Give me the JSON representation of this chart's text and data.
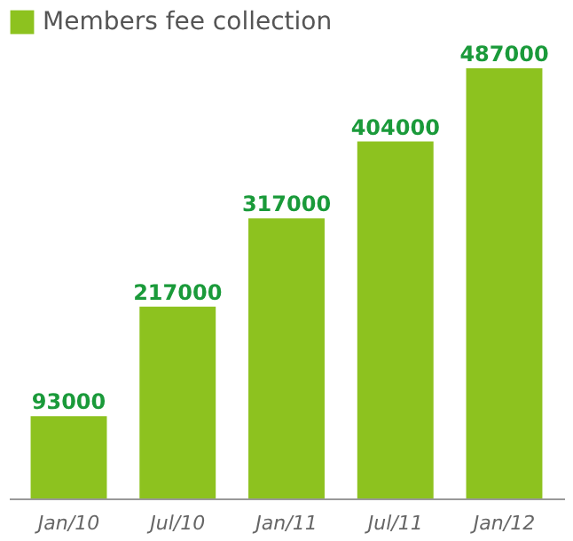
{
  "chart_data": {
    "type": "bar",
    "categories": [
      "Jan/10",
      "Jul/10",
      "Jan/11",
      "Jul/11",
      "Jan/12"
    ],
    "series": [
      {
        "name": "Members fee collection",
        "color": "#8dc21f",
        "values": [
          93000,
          217000,
          317000,
          404000,
          487000
        ]
      }
    ],
    "data_labels": true,
    "legend": "top left",
    "grid": false
  }
}
